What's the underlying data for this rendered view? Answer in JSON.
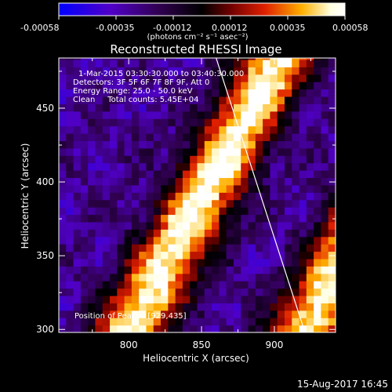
{
  "chart_data": {
    "type": "heatmap",
    "title": "Reconstructed RHESSI Image",
    "xlabel": "Heliocentric X (arcsec)",
    "ylabel": "Heliocentric Y (arcsec)",
    "xlim": [
      752,
      942
    ],
    "ylim": [
      298,
      484
    ],
    "xticks": [
      800,
      850,
      900
    ],
    "yticks": [
      300,
      350,
      400,
      450
    ],
    "grid": false,
    "colorscale": [
      "#0000ff",
      "#5000c8",
      "#300050",
      "#000000",
      "#700000",
      "#e02000",
      "#ffb000",
      "#ffffe0",
      "#ffffff"
    ],
    "colorbar": {
      "range": [
        -0.00058,
        0.00058
      ],
      "ticks": [
        "-0.00058",
        "-0.00035",
        "-0.00012",
        "0.00012",
        "0.00035",
        "0.00058"
      ],
      "unit_label": "(photons cm⁻² s⁻¹ asec⁻²)"
    },
    "annotations": [
      "1-Mar-2015 03:30:30.000 to 03:40:30.000",
      "Detectors: 3F 5F 6F 7F 8F 9F, Att 0",
      "Energy Range: 25.0 - 50.0 keV",
      "Clean     Total counts: 5.45E+04",
      "Position of Peak = [929,435]"
    ],
    "limb_line": {
      "x": [
        860,
        921
      ],
      "y": [
        484,
        298
      ]
    },
    "bands": [
      {
        "offset": 455,
        "level": 1.0
      },
      {
        "offset": 360,
        "level": 0.85
      },
      {
        "offset": 240,
        "level": 0.9
      }
    ],
    "peak": {
      "x": 929,
      "y": 435
    },
    "timestamp": "15-Aug-2017 16:45"
  }
}
